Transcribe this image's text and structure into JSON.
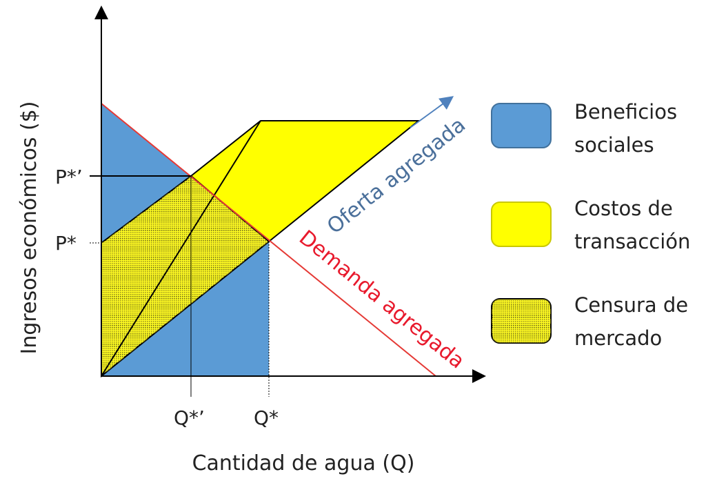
{
  "axes": {
    "y_label": "Ingresos económicos ($)",
    "x_label": "Cantidad de agua (Q)"
  },
  "ticks": {
    "p_star_prime": "P*’",
    "p_star": "P*",
    "q_star_prime": "Q*’",
    "q_star": "Q*"
  },
  "curves": {
    "supply_label": "Oferta agregada",
    "demand_label": "Demanda agregada"
  },
  "legend": [
    {
      "line1": "Beneficios",
      "line2": "sociales",
      "color": "#5b9bd5"
    },
    {
      "line1": "Costos de",
      "line2": "transacción",
      "color": "#ffff00"
    },
    {
      "line1": "Censura de",
      "line2": "mercado",
      "color": "#b8b400"
    }
  ],
  "colors": {
    "supply_line": "#4f81bd",
    "supply_text": "#4a6f9a",
    "demand_line": "#e53935",
    "demand_text": "#e8192c"
  }
}
